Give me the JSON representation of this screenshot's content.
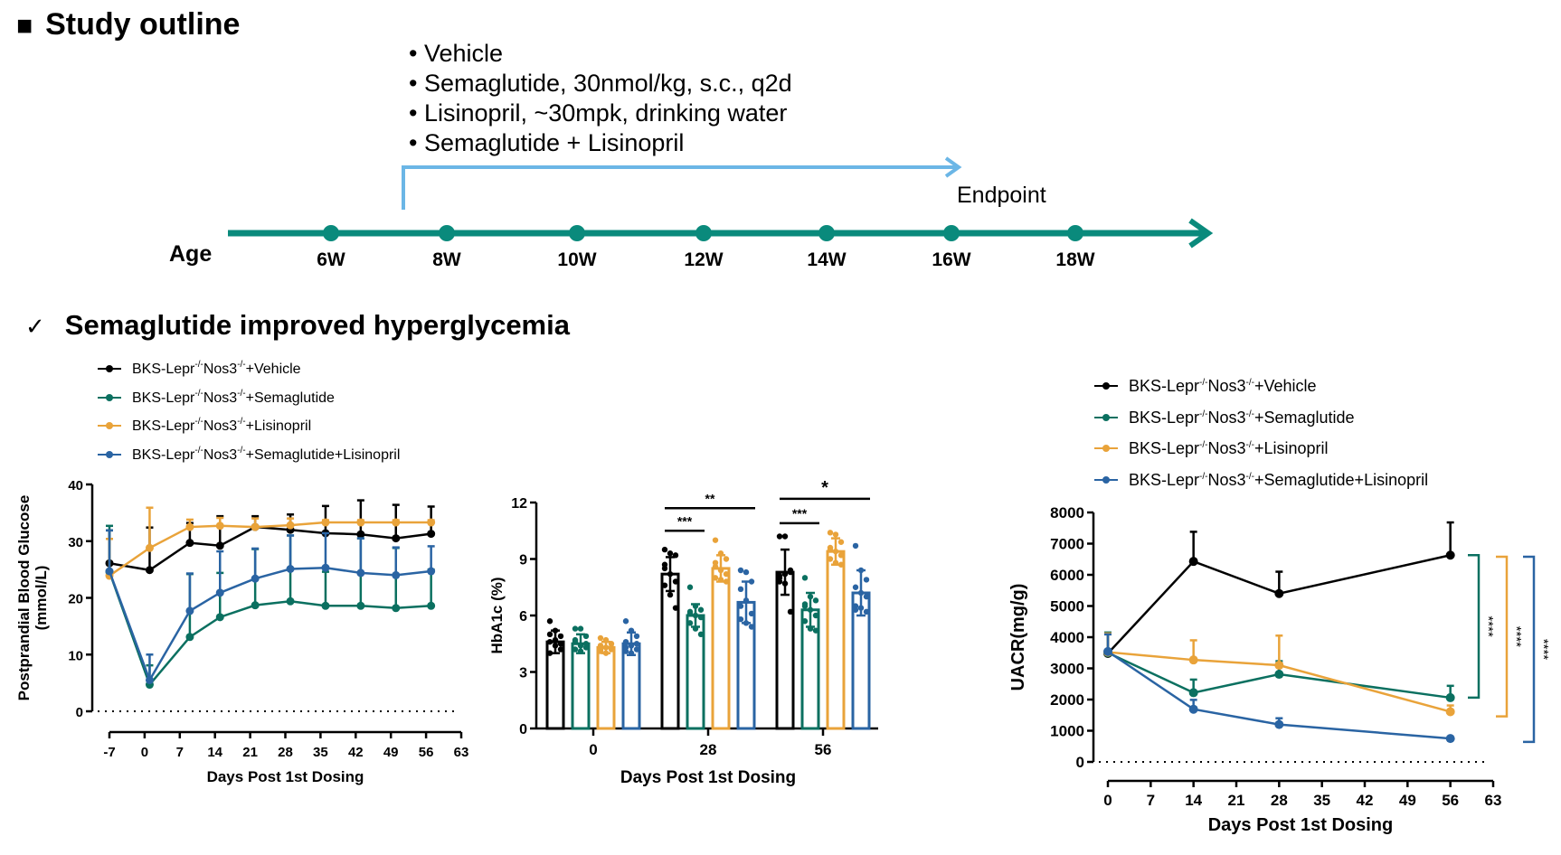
{
  "outline": {
    "title_marker": "■",
    "title": "Study outline",
    "treatments": [
      "• Vehicle",
      "• Semaglutide, 30nmol/kg, s.c., q2d",
      "• Lisinopril, ~30mpk, drinking water",
      "• Semaglutide + Lisinopril"
    ],
    "endpoint_label": "Endpoint",
    "age_label": "Age",
    "timeline_weeks": [
      "6W",
      "8W",
      "10W",
      "12W",
      "14W",
      "16W",
      "18W"
    ],
    "colors": {
      "timeline": "#0a8a7c",
      "dosing_arrow": "#6bb6e6"
    }
  },
  "finding": {
    "check_icon": "✓",
    "text": "Semaglutide improved hyperglycemia"
  },
  "legend": {
    "items": [
      {
        "prefix": "BKS-Lepr",
        "sup1": "-/-",
        "mid": "Nos3",
        "sup2": "-/-",
        "suffix": "+Vehicle",
        "color": "#000000"
      },
      {
        "prefix": "BKS-Lepr",
        "sup1": "-/-",
        "mid": "Nos3",
        "sup2": "-/-",
        "suffix": "+Semaglutide",
        "color": "#0b7060"
      },
      {
        "prefix": "BKS-Lepr",
        "sup1": "-/-",
        "mid": "Nos3",
        "sup2": "-/-",
        "suffix": "+Lisinopril",
        "color": "#e9a33a"
      },
      {
        "prefix": "BKS-Lepr",
        "sup1": "-/-",
        "mid": "Nos3",
        "sup2": "-/-",
        "suffix": "+Semaglutide+Lisinopril",
        "color": "#2a64a3"
      }
    ]
  },
  "chart_data": [
    {
      "id": "glucose",
      "type": "line",
      "title": "",
      "xlabel": "Days Post 1st Dosing",
      "ylabel": "Postprandial Blood Glucose (mmol/L)",
      "xlim": [
        -7,
        63
      ],
      "ylim": [
        0,
        40
      ],
      "xticks": [
        -7,
        0,
        7,
        14,
        21,
        28,
        35,
        42,
        49,
        56,
        63
      ],
      "yticks": [
        0,
        10,
        20,
        30,
        40
      ],
      "reference_line": 0,
      "legend_position": "top-left",
      "x": [
        -7,
        1,
        9,
        15,
        22,
        29,
        36,
        43,
        50,
        57
      ],
      "series": [
        {
          "name": "BKS-Lepr-/-Nos3-/-+Vehicle",
          "color": "#000000",
          "values": [
            26.1,
            24.9,
            29.7,
            29.2,
            32.5,
            32.0,
            31.4,
            31.2,
            30.5,
            31.3
          ],
          "error": [
            5.8,
            7.5,
            3.5,
            5.2,
            1.9,
            2.7,
            4.8,
            6.0,
            5.9,
            4.8
          ]
        },
        {
          "name": "BKS-Lepr-/-Nos3-/-+Semaglutide",
          "color": "#0b7060",
          "values": [
            24.6,
            4.7,
            13.1,
            16.6,
            18.7,
            19.4,
            18.6,
            18.6,
            18.2,
            18.6
          ],
          "error": [
            8.1,
            3.4,
            11.1,
            7.8,
            9.9,
            11.6,
            6.0,
            11.9,
            10.6,
            6.4
          ]
        },
        {
          "name": "BKS-Lepr-/-Nos3-/-+Lisinopril",
          "color": "#e9a33a",
          "values": [
            23.9,
            28.8,
            32.5,
            32.7,
            32.5,
            32.8,
            33.3,
            33.3,
            33.3,
            33.3
          ],
          "error": [
            6.5,
            7.1,
            1.3,
            1.4,
            1.5,
            1.2,
            0.4,
            0.4,
            0.4,
            0.4
          ]
        },
        {
          "name": "BKS-Lepr-/-Nos3-/-+Semaglutide+Lisinopril",
          "color": "#2a64a3",
          "values": [
            24.7,
            5.5,
            17.7,
            20.9,
            23.4,
            25.1,
            25.3,
            24.4,
            24.0,
            24.7
          ],
          "error": [
            7.2,
            4.5,
            6.6,
            7.3,
            5.3,
            5.9,
            6.1,
            6.1,
            4.9,
            4.4
          ]
        }
      ]
    },
    {
      "id": "hba1c",
      "type": "bar",
      "title": "",
      "xlabel": "Days Post 1st Dosing",
      "ylabel": "HbA1c (%)",
      "ylim": [
        0,
        12
      ],
      "yticks": [
        0,
        3,
        6,
        9,
        12
      ],
      "categories": [
        "0",
        "28",
        "56"
      ],
      "series": [
        {
          "name": "BKS-Lepr-/-Nos3-/-+Vehicle",
          "color": "#000000",
          "values": [
            4.6,
            8.2,
            8.3
          ],
          "error": [
            0.6,
            0.9,
            1.2
          ],
          "points": [
            [
              5.7,
              5.2,
              4.9,
              4.6,
              4.4,
              4.2,
              4.0,
              4.7,
              4.5,
              5.0
            ],
            [
              9.5,
              9.3,
              9.2,
              8.7,
              8.2,
              7.8,
              7.6,
              7.1,
              6.4,
              8.5
            ],
            [
              10.2,
              10.2,
              8.4,
              8.0,
              8.2,
              8.3,
              7.8,
              7.7,
              6.2,
              8.1
            ]
          ]
        },
        {
          "name": "BKS-Lepr-/-Nos3-/-+Semaglutide",
          "color": "#0b7060",
          "values": [
            4.5,
            6.0,
            6.3
          ],
          "error": [
            0.5,
            0.6,
            0.9
          ],
          "points": [
            [
              5.3,
              5.3,
              4.9,
              4.7,
              4.4,
              4.3,
              4.2,
              4.1,
              4.5,
              4.6
            ],
            [
              7.5,
              6.5,
              6.3,
              6.1,
              6.0,
              5.9,
              5.6,
              5.3,
              5.0,
              6.2
            ],
            [
              8.0,
              7.0,
              6.8,
              6.5,
              6.3,
              6.0,
              5.7,
              5.3,
              5.2,
              6.6
            ]
          ]
        },
        {
          "name": "BKS-Lepr-/-Nos3-/-+Lisinopril",
          "color": "#e9a33a",
          "values": [
            4.3,
            8.5,
            9.4
          ],
          "error": [
            0.3,
            0.7,
            0.7
          ],
          "points": [
            [
              4.8,
              4.7,
              4.5,
              4.4,
              4.3,
              4.2,
              4.1,
              4.0,
              4.3,
              4.2
            ],
            [
              10.0,
              9.3,
              9.0,
              8.6,
              8.4,
              8.2,
              8.0,
              7.9,
              7.8,
              8.8
            ],
            [
              10.4,
              10.3,
              9.9,
              9.6,
              9.4,
              9.2,
              9.0,
              8.8,
              8.7,
              9.5
            ]
          ]
        },
        {
          "name": "BKS-Lepr-/-Nos3-/-+Semaglutide+Lisinopril",
          "color": "#2a64a3",
          "values": [
            4.5,
            6.7,
            7.2
          ],
          "error": [
            0.6,
            1.1,
            1.2
          ],
          "points": [
            [
              5.7,
              5.2,
              4.9,
              4.6,
              4.4,
              4.2,
              4.1,
              4.0,
              4.5,
              4.3
            ],
            [
              8.4,
              8.3,
              7.8,
              7.4,
              6.8,
              6.1,
              5.8,
              5.6,
              5.4,
              6.5
            ],
            [
              9.7,
              8.4,
              7.9,
              7.5,
              7.2,
              7.0,
              6.5,
              6.4,
              6.2,
              6.3
            ]
          ]
        }
      ],
      "significance": [
        {
          "category": "28",
          "from_series": 0,
          "to_series": 1,
          "label": "***"
        },
        {
          "category": "28",
          "from_series": 0,
          "to_series": 3,
          "label": "**"
        },
        {
          "category": "56",
          "from_series": 0,
          "to_series": 1,
          "label": "***"
        },
        {
          "category": "56",
          "from_series": 0,
          "to_series": 3,
          "label": "*"
        }
      ]
    },
    {
      "id": "uacr",
      "type": "line",
      "title": "",
      "xlabel": "Days Post 1st Dosing",
      "ylabel": "UACR(mg/g)",
      "xlim": [
        0,
        63
      ],
      "ylim": [
        0,
        8000
      ],
      "xticks": [
        0,
        7,
        14,
        21,
        28,
        35,
        42,
        49,
        56,
        63
      ],
      "yticks": [
        0,
        1000,
        2000,
        3000,
        4000,
        5000,
        6000,
        7000,
        8000
      ],
      "reference_line": 0,
      "legend_position": "top",
      "x": [
        0,
        14,
        28,
        56
      ],
      "series": [
        {
          "name": "BKS-Lepr-/-Nos3-/-+Vehicle",
          "color": "#000000",
          "values": [
            3480,
            6430,
            5400,
            6630
          ],
          "error": [
            620,
            950,
            700,
            1050
          ]
        },
        {
          "name": "BKS-Lepr-/-Nos3-/-+Semaglutide",
          "color": "#0b7060",
          "values": [
            3500,
            2220,
            2810,
            2060
          ],
          "error": [
            650,
            420,
            420,
            380
          ]
        },
        {
          "name": "BKS-Lepr-/-Nos3-/-+Lisinopril",
          "color": "#e9a33a",
          "values": [
            3520,
            3270,
            3100,
            1610
          ],
          "error": [
            600,
            630,
            950,
            200
          ]
        },
        {
          "name": "BKS-Lepr-/-Nos3-/-+Semaglutide+Lisinopril",
          "color": "#2a64a3",
          "values": [
            3540,
            1690,
            1200,
            750
          ],
          "error": [
            550,
            300,
            200,
            0
          ]
        }
      ],
      "significance": [
        {
          "compare": "Vehicle vs Semaglutide",
          "label": "****",
          "color": "#0b7060",
          "range": [
            2060,
            6630
          ]
        },
        {
          "compare": "Vehicle vs Lisinopril",
          "label": "****",
          "color": "#e9a33a",
          "range": [
            1460,
            6580
          ]
        },
        {
          "compare": "Vehicle vs Semaglutide+Lisinopril",
          "label": "****",
          "color": "#2a64a3",
          "range": [
            640,
            6580
          ]
        }
      ]
    }
  ]
}
